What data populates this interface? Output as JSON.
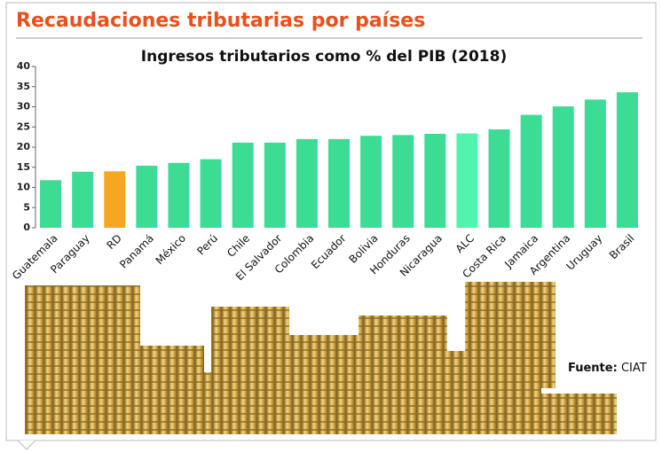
{
  "header": {
    "title": "Recaudaciones tributarias por países"
  },
  "chart_data": {
    "type": "bar",
    "title": "Ingresos tributarios como % del PIB (2018)",
    "categories": [
      "Guatemala",
      "Paraguay",
      "RD",
      "Panamá",
      "México",
      "Perú",
      "Chile",
      "El Salvador",
      "Colombia",
      "Ecuador",
      "Bolivia",
      "Honduras",
      "Nicaragua",
      "ALC",
      "Costa Rica",
      "Jamaica",
      "Argentina",
      "Uruguay",
      "Brasil"
    ],
    "values": [
      11.8,
      13.9,
      14.0,
      15.4,
      16.1,
      17.0,
      21.1,
      21.1,
      22.0,
      22.0,
      22.8,
      23.0,
      23.3,
      23.4,
      24.4,
      28.0,
      30.1,
      31.8,
      33.6
    ],
    "colors": [
      "#3ddc94",
      "#3ddc94",
      "#f5a623",
      "#3ddc94",
      "#3ddc94",
      "#3ddc94",
      "#3ddc94",
      "#3ddc94",
      "#3ddc94",
      "#3ddc94",
      "#3ddc94",
      "#3ddc94",
      "#3ddc94",
      "#4ff5ac",
      "#3ddc94",
      "#3ddc94",
      "#3ddc94",
      "#3ddc94",
      "#3ddc94"
    ],
    "ylim": [
      0,
      40
    ],
    "yticks": [
      0,
      5,
      10,
      15,
      20,
      25,
      30,
      35,
      40
    ]
  },
  "source": {
    "label": "Fuente:",
    "text": "CIAT"
  }
}
